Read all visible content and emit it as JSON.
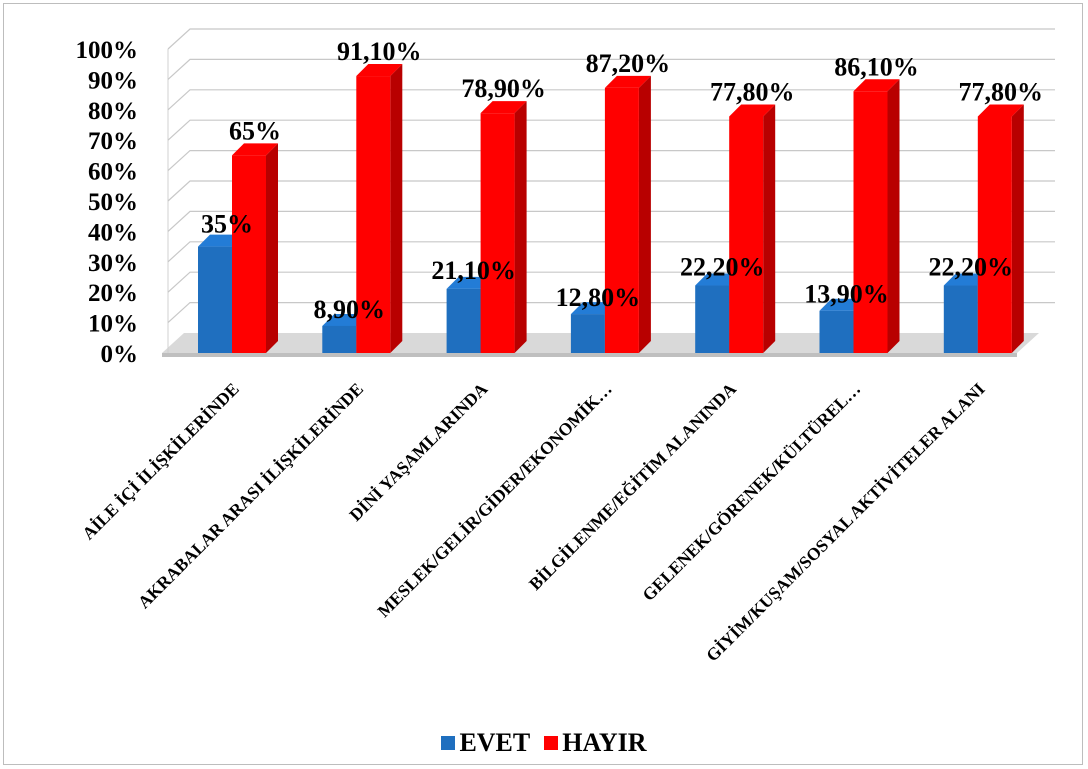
{
  "chart_data": {
    "type": "bar",
    "title": "",
    "xlabel": "",
    "ylabel": "",
    "ylim": [
      0,
      100
    ],
    "yticks": [
      "0%",
      "10%",
      "20%",
      "30%",
      "40%",
      "50%",
      "60%",
      "70%",
      "80%",
      "90%",
      "100%"
    ],
    "grid": true,
    "legend_position": "bottom",
    "categories": [
      "AİLE İÇİ İLİŞKİLERİNDE",
      "AKRABALAR ARASI İLİŞKİLERİNDE",
      "DİNİ YAŞAMLARINDA",
      "MESLEK/GELİR/GİDER/EKONOMİK…",
      "BİLGİLENME/EĞİTİM ALANINDA",
      "GELENEK/GÖRENEK/KÜLTÜREL…",
      "GİYİM/KUŞAM/SOSYAL AKTİVİTELER ALANI"
    ],
    "series": [
      {
        "name": "EVET",
        "color": "#1f6fbf",
        "values": [
          35,
          8.9,
          21.1,
          12.8,
          22.2,
          13.9,
          22.2
        ],
        "labels": [
          "35%",
          "8,90%",
          "21,10%",
          "12,80%",
          "22,20%",
          "13,90%",
          "22,20%"
        ]
      },
      {
        "name": "HAYIR",
        "color": "#ff0000",
        "values": [
          65,
          91.1,
          78.9,
          87.2,
          77.8,
          86.1,
          77.8
        ],
        "labels": [
          "65%",
          "91,10%",
          "78,90%",
          "87,20%",
          "77,80%",
          "86,10%",
          "77,80%"
        ]
      }
    ]
  }
}
